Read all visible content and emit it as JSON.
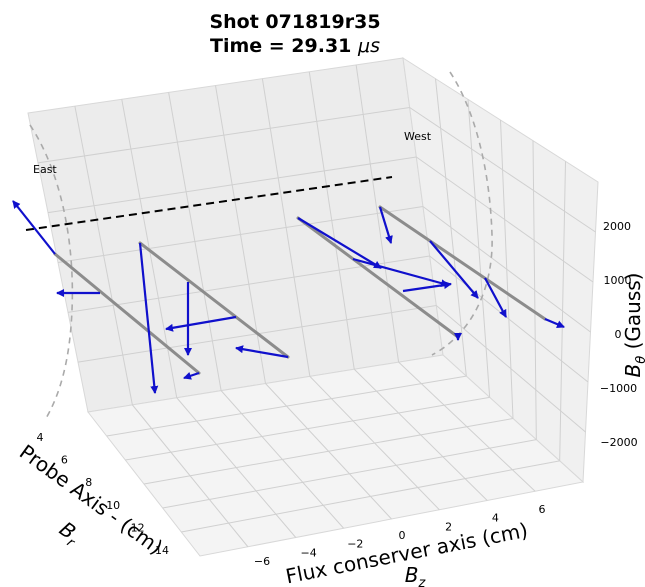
{
  "chart_data": {
    "type": "quiver3d",
    "title": "Shot 071819r35",
    "subtitle_prefix": "Time = 29.31 ",
    "subtitle_unit": "μs",
    "x_axis": {
      "label": "Flux conserver axis (cm)",
      "sublabel": "B",
      "sublabel_sub": "z",
      "ticks": [
        "−6",
        "−4",
        "−2",
        "0",
        "2",
        "4",
        "6"
      ],
      "range": [
        -7,
        7
      ]
    },
    "y_axis": {
      "label": "Probe Axis - (cm)",
      "sublabel": "B",
      "sublabel_sub": "r",
      "ticks": [
        "4",
        "6",
        "8",
        "10",
        "12",
        "14"
      ],
      "range": [
        3,
        15
      ]
    },
    "z_axis": {
      "label": "B",
      "label_sub": "θ",
      "label_suffix": " (Gauss)",
      "ticks": [
        "2000",
        "1000",
        "0",
        "−1000",
        "−2000"
      ],
      "range": [
        -2500,
        2500
      ]
    },
    "side_labels": {
      "east": "East",
      "west": "West"
    },
    "colors": {
      "arrow": "#1010cc",
      "probe": "#8c8c8c",
      "axis_dash": "#000000",
      "wall_dash": "#aaaaaa",
      "grid": "#d0d0d0",
      "pane_side": "#ececec",
      "pane_back": "#f2f2f2",
      "pane_floor": "#f5f5f5"
    },
    "grid": true
  }
}
